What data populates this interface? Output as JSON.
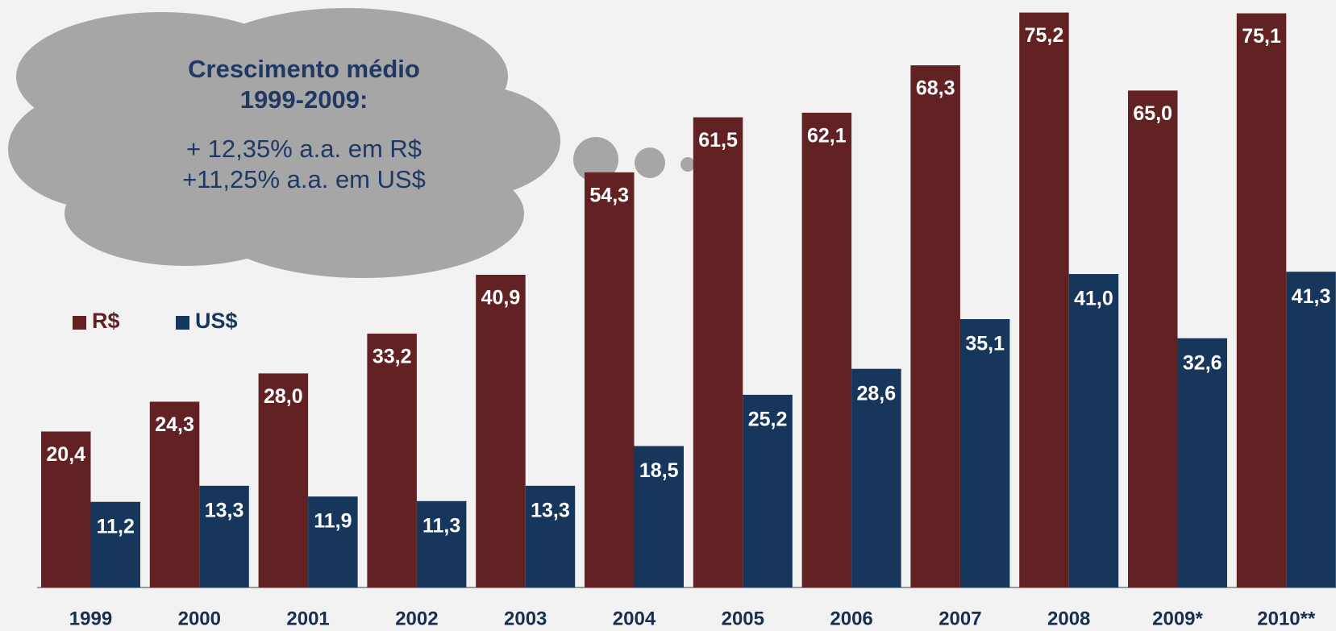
{
  "chart_data": {
    "type": "bar",
    "categories": [
      "1999",
      "2000",
      "2001",
      "2002",
      "2003",
      "2004",
      "2005",
      "2006",
      "2007",
      "2008",
      "2009*",
      "2010**"
    ],
    "series": [
      {
        "name": "R$",
        "color": "#622224",
        "values": [
          20.4,
          24.3,
          28.0,
          33.2,
          40.9,
          54.3,
          61.5,
          62.1,
          68.3,
          75.2,
          65.0,
          75.1
        ],
        "value_labels": [
          "20,4",
          "24,3",
          "28,0",
          "33,2",
          "40,9",
          "54,3",
          "61,5",
          "62,1",
          "68,3",
          "75,2",
          "65,0",
          "75,1"
        ]
      },
      {
        "name": "US$",
        "color": "#16365c",
        "values": [
          11.2,
          13.3,
          11.9,
          11.3,
          13.3,
          18.5,
          25.2,
          28.6,
          35.1,
          41.0,
          32.6,
          41.3
        ],
        "value_labels": [
          "11,2",
          "13,3",
          "11,9",
          "11,3",
          "13,3",
          "18,5",
          "25,2",
          "28,6",
          "35,1",
          "41,0",
          "32,6",
          "41,3"
        ]
      }
    ],
    "ylim": [
      0,
      76
    ],
    "legend": "left",
    "annotations": [
      "Crescimento médio",
      "1999-2009:",
      "+ 12,35% a.a. em R$",
      "+11,25% a.a. em US$"
    ]
  }
}
